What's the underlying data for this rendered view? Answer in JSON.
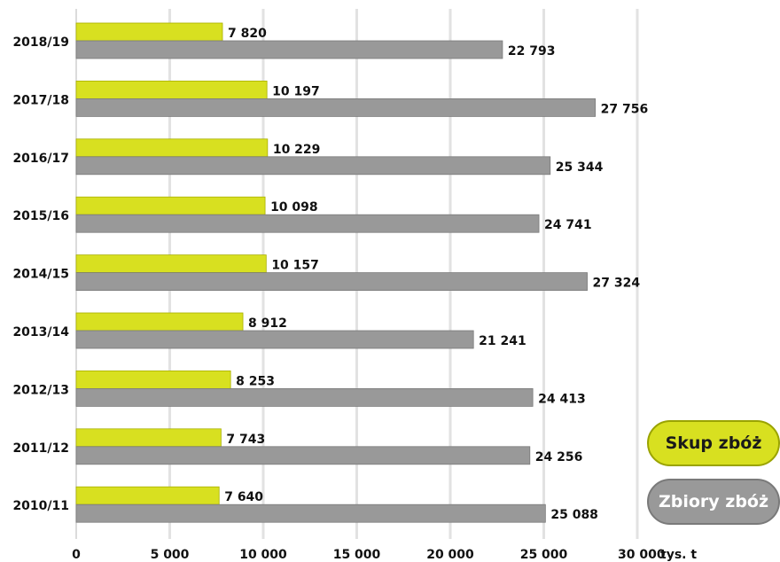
{
  "chart_data": {
    "type": "bar",
    "orientation": "horizontal",
    "categories": [
      "2018/19",
      "2017/18",
      "2016/17",
      "2015/16",
      "2014/15",
      "2013/14",
      "2012/13",
      "2011/12",
      "2010/11"
    ],
    "series": [
      {
        "name": "Skup zbóż",
        "color": "#d8e020",
        "values": [
          7820,
          10197,
          10229,
          10098,
          10157,
          8912,
          8253,
          7743,
          7640
        ],
        "labels": [
          "7 820",
          "10 197",
          "10 229",
          "10 098",
          "10 157",
          "8 912",
          "8 253",
          "7 743",
          "7 640"
        ]
      },
      {
        "name": "Zbiory zbóż",
        "color": "#999999",
        "values": [
          22793,
          27756,
          25344,
          24741,
          27324,
          21241,
          24413,
          24256,
          25088
        ],
        "labels": [
          "22 793",
          "27 756",
          "25 344",
          "24 741",
          "27 324",
          "21 241",
          "24 413",
          "24 256",
          "25 088"
        ]
      }
    ],
    "xlim": [
      0,
      30000
    ],
    "x_ticks": [
      0,
      5000,
      10000,
      15000,
      20000,
      25000,
      30000
    ],
    "x_tick_labels": [
      "0",
      "5 000",
      "10 000",
      "15 000",
      "20 000",
      "25 000",
      "30 000"
    ],
    "x_unit": "tys. t",
    "grid": true,
    "legend_position": "bottom-right",
    "title": "",
    "xlabel": "",
    "ylabel": ""
  },
  "legend": {
    "skup_label": "Skup zbóż",
    "zbiory_label": "Zbiory zbóż",
    "skup_color": "#d8e020",
    "zbiory_color": "#999999"
  }
}
